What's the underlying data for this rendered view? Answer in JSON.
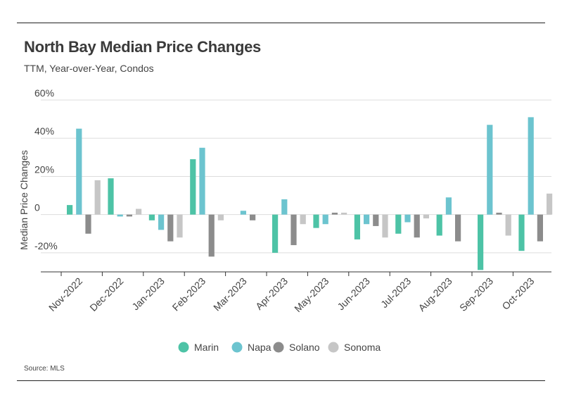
{
  "header": {
    "title": "North Bay Median Price Changes",
    "subtitle": "TTM, Year-over-Year, Condos"
  },
  "footer": {
    "source": "Source: MLS"
  },
  "colors": {
    "Marin": "#4dc3a6",
    "Napa": "#6cc4cf",
    "Solano": "#8c8c8c",
    "Sonoma": "#c6c6c6",
    "grid": "#dddddd",
    "axis": "#333333"
  },
  "chart_data": {
    "type": "bar",
    "title": "North Bay Median Price Changes",
    "subtitle": "TTM, Year-over-Year, Condos",
    "xlabel": "",
    "ylabel": "Median Price Changes",
    "ylim": [
      -30,
      60
    ],
    "yticks": [
      -20,
      0,
      20,
      40,
      60
    ],
    "ytick_labels": [
      "-20%",
      "0",
      "20%",
      "40%",
      "60%"
    ],
    "grid": true,
    "legend_position": "bottom-center",
    "categories": [
      "Nov-2022",
      "Dec-2022",
      "Jan-2023",
      "Feb-2023",
      "Mar-2023",
      "Apr-2023",
      "May-2023",
      "Jun-2023",
      "Jul-2023",
      "Aug-2023",
      "Sep-2023",
      "Oct-2023"
    ],
    "series": [
      {
        "name": "Marin",
        "values": [
          5,
          19,
          -3,
          29,
          0,
          -20,
          -7,
          -13,
          -10,
          -11,
          -29,
          -19
        ]
      },
      {
        "name": "Napa",
        "values": [
          45,
          -1,
          -8,
          35,
          2,
          8,
          -5,
          -5,
          -4,
          9,
          47,
          51
        ]
      },
      {
        "name": "Solano",
        "values": [
          -10,
          -1,
          -14,
          -22,
          -3,
          -16,
          1,
          -6,
          -12,
          -14,
          1,
          -14
        ]
      },
      {
        "name": "Sonoma",
        "values": [
          18,
          3,
          -12,
          -3,
          0,
          -5,
          1,
          -12,
          -2,
          0,
          -11,
          11
        ]
      }
    ]
  }
}
